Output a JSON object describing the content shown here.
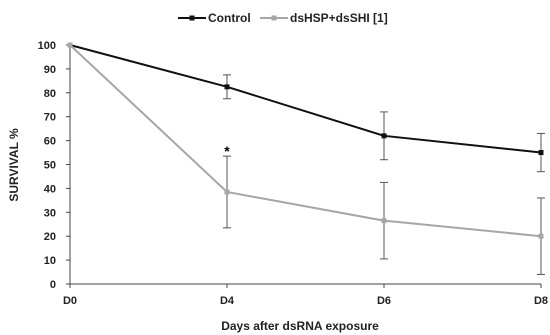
{
  "chart_data": {
    "type": "line",
    "categories": [
      "D0",
      "D4",
      "D6",
      "D8"
    ],
    "xlabel": "Days after dsRNA exposure",
    "ylabel": "SURVIVAL %",
    "ylim": [
      0,
      100
    ],
    "yticks": [
      0,
      10,
      20,
      30,
      40,
      50,
      60,
      70,
      80,
      90,
      100
    ],
    "grid": false,
    "legend_position": "top-center",
    "series": [
      {
        "name": "Control",
        "color": "#111111",
        "values": [
          100,
          82.5,
          62,
          55
        ],
        "error": [
          0,
          5,
          10,
          8
        ]
      },
      {
        "name": "dsHSP+dsSHI [1]",
        "color": "#a6a6a6",
        "values": [
          100,
          38.5,
          26.5,
          20
        ],
        "error": [
          0,
          15,
          16,
          16
        ]
      }
    ],
    "annotations": [
      {
        "text": "*",
        "category": "D4",
        "y": 56
      }
    ]
  }
}
